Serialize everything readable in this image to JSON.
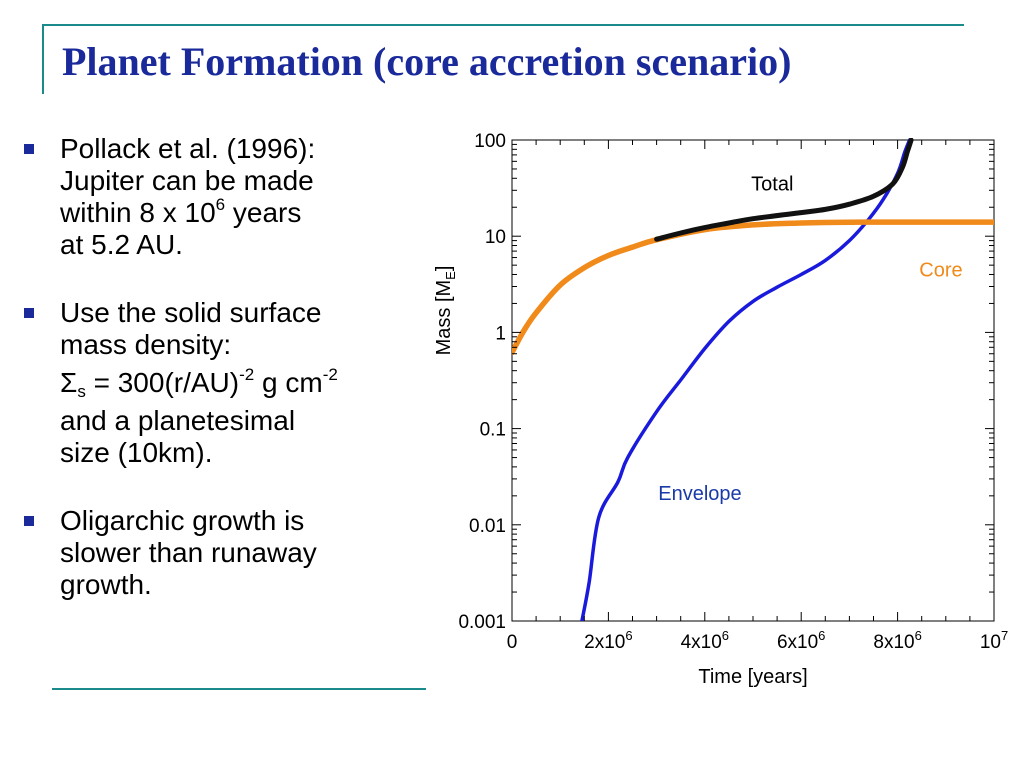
{
  "slide": {
    "title": "Planet Formation (core accretion scenario)",
    "accent_color": "#1b8a8a",
    "title_color": "#1a2a9a",
    "bullet_icon": "square-bullet-icon",
    "bullets": [
      {
        "lines": [
          {
            "parts": [
              "Pollack et al. (1996):"
            ]
          },
          {
            "parts": [
              "Jupiter can be made"
            ]
          },
          {
            "parts": [
              "within 8 x 10",
              "6",
              " years"
            ]
          },
          {
            "parts": [
              "at 5.2 AU."
            ]
          }
        ]
      },
      {
        "lines": [
          {
            "parts": [
              "Use the solid surface"
            ]
          },
          {
            "parts": [
              "mass density:"
            ]
          },
          {
            "parts": [
              "Σ",
              "s",
              " = 300(r/AU)",
              "-2",
              " g cm",
              "-2"
            ]
          },
          {
            "parts": [
              "and a planetesimal"
            ]
          },
          {
            "parts": [
              "size (10km)."
            ]
          }
        ]
      },
      {
        "lines": [
          {
            "parts": [
              "Oligarchic growth is"
            ]
          },
          {
            "parts": [
              "slower than runaway"
            ]
          },
          {
            "parts": [
              "growth."
            ]
          }
        ]
      }
    ]
  },
  "chart_data": {
    "type": "line",
    "title": "",
    "xlabel": "Time [years]",
    "ylabel": {
      "base": "Mass [M",
      "sub": "E",
      "close": "]"
    },
    "x_scale": "linear",
    "y_scale": "log",
    "xlim": [
      0,
      10000000
    ],
    "ylim": [
      0.001,
      100
    ],
    "grid": false,
    "x_ticks": [
      {
        "value": 0,
        "base": "0",
        "exp": ""
      },
      {
        "value": 2000000,
        "base": "2x10",
        "exp": "6"
      },
      {
        "value": 4000000,
        "base": "4x10",
        "exp": "6"
      },
      {
        "value": 6000000,
        "base": "6x10",
        "exp": "6"
      },
      {
        "value": 8000000,
        "base": "8x10",
        "exp": "6"
      },
      {
        "value": 10000000,
        "base": "10",
        "exp": "7"
      }
    ],
    "y_ticks": [
      {
        "value": 0.001,
        "label": "0.001"
      },
      {
        "value": 0.01,
        "label": "0.01"
      },
      {
        "value": 0.1,
        "label": "0.1"
      },
      {
        "value": 1,
        "label": "1"
      },
      {
        "value": 10,
        "label": "10"
      },
      {
        "value": 100,
        "label": "100"
      }
    ],
    "series": [
      {
        "name": "Envelope",
        "color": "#1a1adc",
        "label_color": "#1a3aa8",
        "points": [
          [
            1450000,
            0.001
          ],
          [
            1600000,
            0.0025
          ],
          [
            1800000,
            0.012
          ],
          [
            2200000,
            0.028
          ],
          [
            2400000,
            0.05
          ],
          [
            3000000,
            0.15
          ],
          [
            3500000,
            0.32
          ],
          [
            4000000,
            0.68
          ],
          [
            4500000,
            1.3
          ],
          [
            5000000,
            2.1
          ],
          [
            5500000,
            2.95
          ],
          [
            6000000,
            4
          ],
          [
            6500000,
            5.6
          ],
          [
            7000000,
            9
          ],
          [
            7400000,
            15
          ],
          [
            7700000,
            24
          ],
          [
            8000000,
            45
          ],
          [
            8150000,
            75
          ],
          [
            8250000,
            100
          ]
        ]
      },
      {
        "name": "Core",
        "color": "#f08a1a",
        "label_color": "#f08a1a",
        "points": [
          [
            0,
            0.62
          ],
          [
            250000,
            1.05
          ],
          [
            500000,
            1.6
          ],
          [
            1000000,
            3.1
          ],
          [
            1500000,
            4.7
          ],
          [
            2000000,
            6.3
          ],
          [
            2500000,
            7.7
          ],
          [
            3000000,
            9.2
          ],
          [
            4000000,
            11.7
          ],
          [
            5000000,
            13.1
          ],
          [
            6000000,
            13.7
          ],
          [
            7000000,
            13.95
          ],
          [
            8000000,
            14
          ],
          [
            10000000,
            14
          ]
        ]
      },
      {
        "name": "Total",
        "color": "#111111",
        "label_color": "#000000",
        "points": [
          [
            3000000,
            9.3
          ],
          [
            3500000,
            10.8
          ],
          [
            4000000,
            12.3
          ],
          [
            4500000,
            13.7
          ],
          [
            5000000,
            15.2
          ],
          [
            6000000,
            17.6
          ],
          [
            6500000,
            19
          ],
          [
            7000000,
            21.5
          ],
          [
            7500000,
            26
          ],
          [
            7900000,
            35
          ],
          [
            8100000,
            52
          ],
          [
            8200000,
            75
          ],
          [
            8280000,
            100
          ]
        ]
      }
    ],
    "annotations": [
      {
        "series": "Total",
        "text": "Total",
        "x": 5400000,
        "y": 30
      },
      {
        "series": "Core",
        "text": "Core",
        "x": 8900000,
        "y": 3.8
      },
      {
        "series": "Envelope",
        "text": "Envelope",
        "x": 3900000,
        "y": 0.018
      }
    ]
  }
}
